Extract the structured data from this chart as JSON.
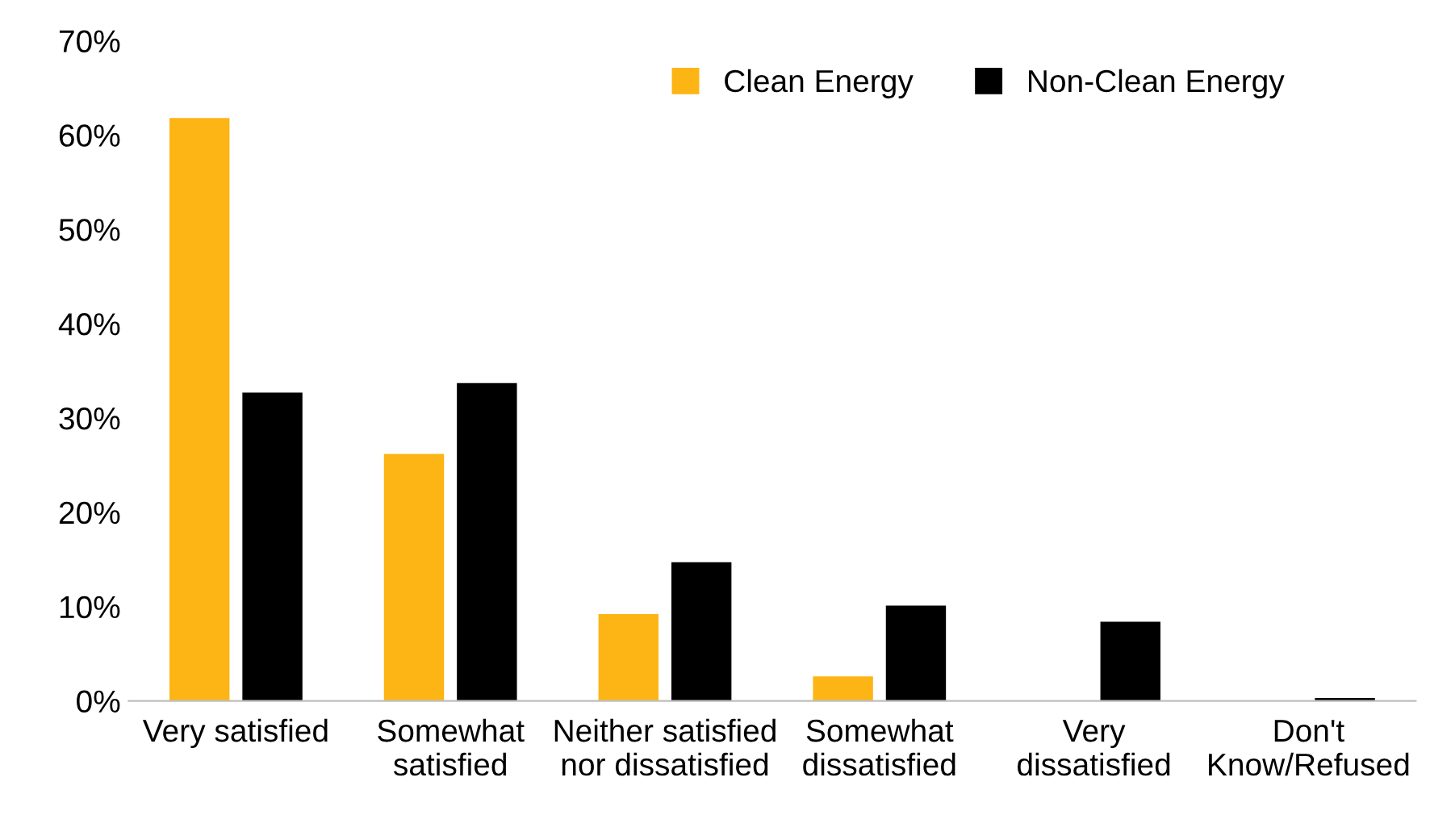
{
  "chart_data": {
    "type": "bar",
    "categories": [
      "Very satisfied",
      "Somewhat\nsatisfied",
      "Neither satisfied\nnor dissatisfied",
      "Somewhat\ndissatisfied",
      "Very\ndissatisfied",
      "Don't\nKnow/Refused"
    ],
    "series": [
      {
        "name": "Clean Energy",
        "color": "#fdb515",
        "values": [
          61.8,
          26.2,
          9.2,
          2.6,
          0,
          0
        ]
      },
      {
        "name": "Non-Clean Energy",
        "color": "#000000",
        "values": [
          32.7,
          33.7,
          14.7,
          10.1,
          8.4,
          0.3
        ]
      }
    ],
    "ylim": [
      0,
      70
    ],
    "yticks": [
      {
        "value": 0,
        "label": "0%"
      },
      {
        "value": 10,
        "label": "10%"
      },
      {
        "value": 20,
        "label": "20%"
      },
      {
        "value": 30,
        "label": "30%"
      },
      {
        "value": 40,
        "label": "40%"
      },
      {
        "value": 50,
        "label": "50%"
      },
      {
        "value": 60,
        "label": "60%"
      },
      {
        "value": 70,
        "label": "70%"
      }
    ],
    "grid": false,
    "legend": "top right"
  }
}
